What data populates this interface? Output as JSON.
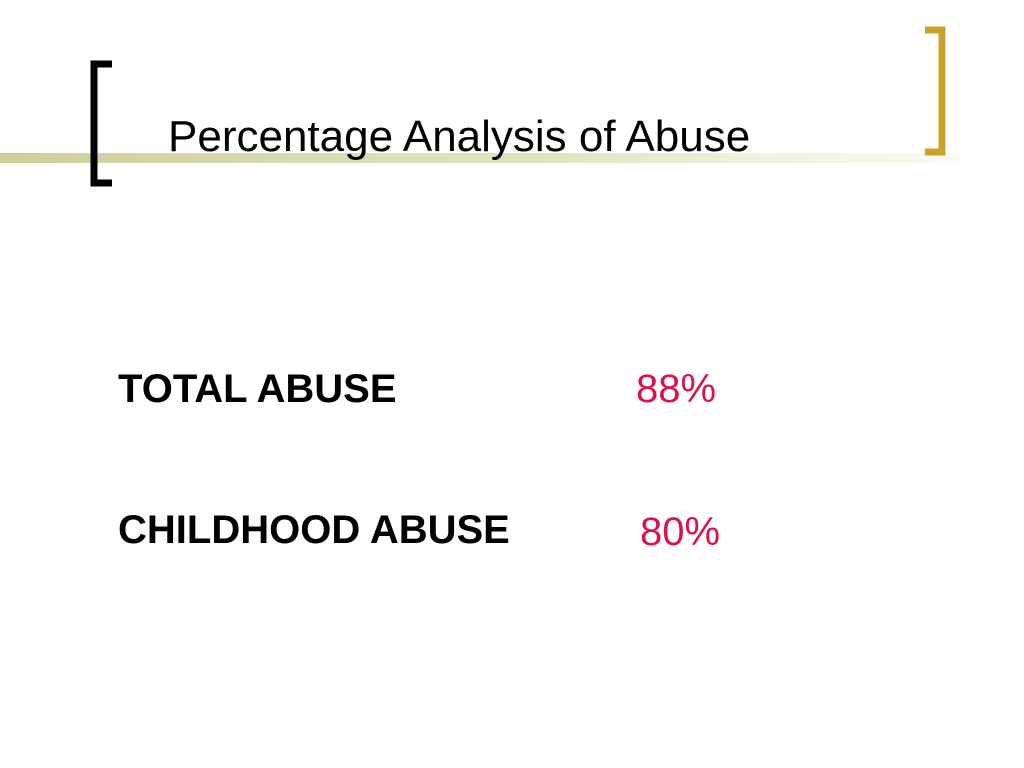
{
  "title": "Percentage Analysis of Abuse",
  "rows": [
    {
      "label": "TOTAL ABUSE",
      "value": "88%"
    },
    {
      "label": "CHILDHOOD ABUSE",
      "value": "80%"
    }
  ]
}
